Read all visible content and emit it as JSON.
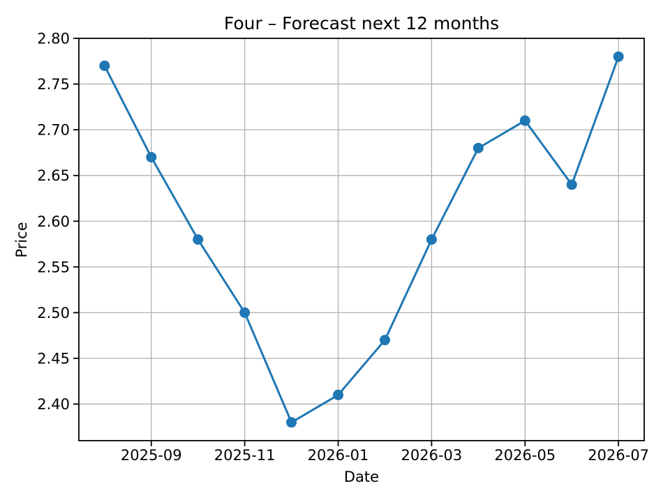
{
  "chart_data": {
    "type": "line",
    "title": "Four – Forecast next 12 months",
    "xlabel": "Date",
    "ylabel": "Price",
    "x": [
      "2025-08",
      "2025-09",
      "2025-10",
      "2025-11",
      "2025-12",
      "2026-01",
      "2026-02",
      "2026-03",
      "2026-04",
      "2026-05",
      "2026-06",
      "2026-07"
    ],
    "values": [
      2.77,
      2.67,
      2.58,
      2.5,
      2.38,
      2.41,
      2.47,
      2.58,
      2.68,
      2.71,
      2.64,
      2.78
    ],
    "x_ticks": [
      {
        "index": 1,
        "label": "2025-09"
      },
      {
        "index": 3,
        "label": "2025-11"
      },
      {
        "index": 5,
        "label": "2026-01"
      },
      {
        "index": 7,
        "label": "2026-03"
      },
      {
        "index": 9,
        "label": "2026-05"
      },
      {
        "index": 11,
        "label": "2026-07"
      }
    ],
    "y_ticks": [
      "2.40",
      "2.45",
      "2.50",
      "2.55",
      "2.60",
      "2.65",
      "2.70",
      "2.75",
      "2.80"
    ],
    "xlim": [
      -0.55,
      11.55
    ],
    "ylim": [
      2.36,
      2.8
    ],
    "grid": true,
    "legend": "none",
    "marker": "circle",
    "colors": {
      "line": "#1f77b4",
      "marker": "#1f77b4",
      "grid": "#b0b0b0",
      "spine": "#000000",
      "text": "#000000",
      "background": "#ffffff"
    }
  }
}
